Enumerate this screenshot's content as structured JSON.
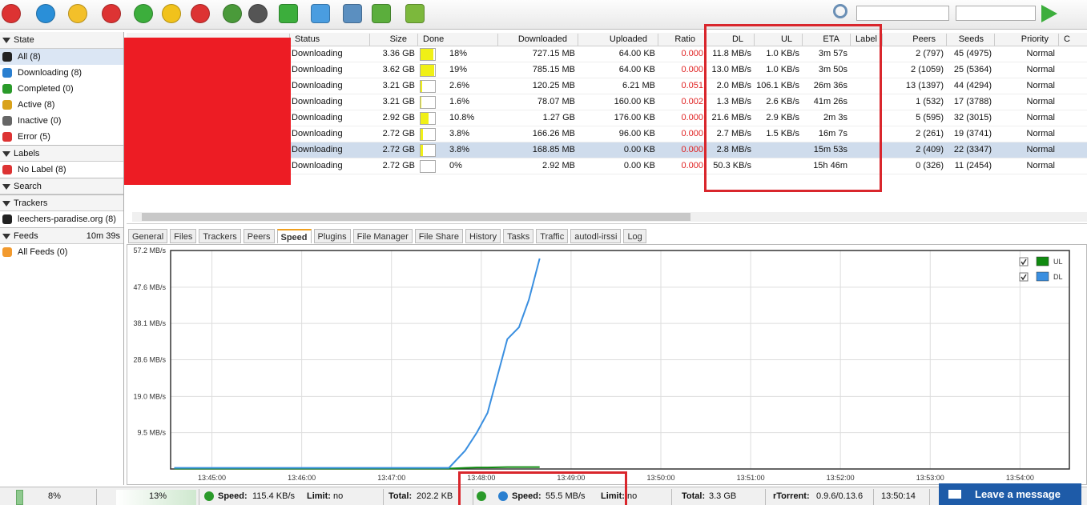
{
  "sidebar": [
    {
      "title": "State",
      "items": [
        "All (8)",
        "Downloading (8)",
        "Completed (0)",
        "Active (8)",
        "Inactive (0)",
        "Error (5)"
      ]
    },
    {
      "title": "Labels",
      "items": [
        "No Label (8)"
      ]
    },
    {
      "title": "Search",
      "items": []
    },
    {
      "title": "Trackers",
      "items": [
        "leechers-paradise.org (8)"
      ]
    },
    {
      "title": "Feeds",
      "note": "10m 39s",
      "items": [
        "All Feeds (0)"
      ]
    }
  ],
  "table": {
    "headers": [
      "Status",
      "Size",
      "Done",
      "Downloaded",
      "Uploaded",
      "Ratio",
      "DL",
      "UL",
      "ETA",
      "Label",
      "Peers",
      "Seeds",
      "Priority",
      "C"
    ],
    "selected_row": 6,
    "rows": [
      [
        "Downloading",
        "3.36 GB",
        "18%",
        "727.15 MB",
        "64.00 KB",
        "0.000",
        "11.8 MB/s",
        "1.0 KB/s",
        "3m 57s",
        null,
        "2 (797)",
        "45 (4975)",
        "Normal"
      ],
      [
        "Downloading",
        "3.62 GB",
        "19%",
        "785.15 MB",
        "64.00 KB",
        "0.000",
        "13.0 MB/s",
        "1.0 KB/s",
        "3m 50s",
        null,
        "2 (1059)",
        "25 (5364)",
        "Normal"
      ],
      [
        "Downloading",
        "3.21 GB",
        "2.6%",
        "120.25 MB",
        "6.21 MB",
        "0.051",
        "2.0 MB/s",
        "106.1 KB/s",
        "26m 36s",
        null,
        "13 (1397)",
        "44 (4294)",
        "Normal"
      ],
      [
        "Downloading",
        "3.21 GB",
        "1.6%",
        "78.07 MB",
        "160.00 KB",
        "0.002",
        "1.3 MB/s",
        "2.6 KB/s",
        "41m 26s",
        null,
        "1 (532)",
        "17 (3788)",
        "Normal"
      ],
      [
        "Downloading",
        "2.92 GB",
        "10.8%",
        "1.27 GB",
        "176.00 KB",
        "0.000",
        "21.6 MB/s",
        "2.9 KB/s",
        "2m 3s",
        null,
        "5 (595)",
        "32 (3015)",
        "Normal"
      ],
      [
        "Downloading",
        "2.72 GB",
        "3.8%",
        "166.26 MB",
        "96.00 KB",
        "0.000",
        "2.7 MB/s",
        "1.5 KB/s",
        "16m 7s",
        null,
        "2 (261)",
        "19 (3741)",
        "Normal"
      ],
      [
        "Downloading",
        "2.72 GB",
        "3.8%",
        "168.85 MB",
        "0.00 KB",
        "0.000",
        "2.8 MB/s",
        null,
        "15m 53s",
        null,
        "2 (409)",
        "22 (3347)",
        "Normal"
      ],
      [
        "Downloading",
        "2.72 GB",
        "0%",
        "2.92 MB",
        "0.00 KB",
        "0.000",
        "50.3 KB/s",
        null,
        "15h 46m",
        null,
        "0 (326)",
        "11 (2454)",
        "Normal"
      ]
    ]
  },
  "tabs": {
    "items": [
      "General",
      "Files",
      "Trackers",
      "Peers",
      "Speed",
      "Plugins",
      "File Manager",
      "File Share",
      "History",
      "Tasks",
      "Traffic",
      "autodl-irssi",
      "Log"
    ],
    "active": 4
  },
  "speed_graph": {
    "type": "line",
    "xlim": [
      44.54,
      54.55
    ],
    "ylim": [
      0,
      57.2
    ],
    "xticks": [
      {
        "value": 45,
        "label": "13:45:00"
      },
      {
        "value": 46,
        "label": "13:46:00"
      },
      {
        "value": 47,
        "label": "13:47:00"
      },
      {
        "value": 48,
        "label": "13:48:00"
      },
      {
        "value": 49,
        "label": "13:49:00"
      },
      {
        "value": 50,
        "label": "13:50:00"
      },
      {
        "value": 51,
        "label": "13:51:00"
      },
      {
        "value": 52,
        "label": "13:52:00"
      },
      {
        "value": 53,
        "label": "13:53:00"
      },
      {
        "value": 54,
        "label": "13:54:00"
      }
    ],
    "yticks": [
      {
        "value": 9.5,
        "label": "9.5 MB/s"
      },
      {
        "value": 19.0,
        "label": "19.0 MB/s"
      },
      {
        "value": 28.6,
        "label": "28.6 MB/s"
      },
      {
        "value": 38.1,
        "label": "38.1 MB/s"
      },
      {
        "value": 47.6,
        "label": "47.6 MB/s"
      },
      {
        "value": 57.2,
        "label": "57.2 MB/s"
      }
    ],
    "grid": true,
    "x": [
      44.58,
      47.64,
      47.82,
      47.95,
      48.07,
      48.29,
      48.42,
      48.53,
      48.65
    ],
    "series": [
      {
        "name": "UL",
        "color": "#108a10",
        "values": [
          0.1,
          0.1,
          0.3,
          0.4,
          0.4,
          0.5,
          0.5,
          0.5,
          0.5
        ]
      },
      {
        "name": "DL",
        "color": "#3a8fe0",
        "values": [
          0.3,
          0.3,
          4.8,
          9.5,
          14.7,
          34.0,
          37.1,
          44.3,
          55.1
        ]
      }
    ]
  },
  "status_bar": {
    "cpu": "8%",
    "disk": "13%",
    "up": {
      "speed_label": "Speed:",
      "speed": "115.4 KB/s",
      "limit_label": "Limit:",
      "limit": "no",
      "total_label": "Total:",
      "total": "202.2 KB"
    },
    "down": {
      "speed_label": "Speed:",
      "speed": "55.5 MB/s",
      "limit_label": "Limit:",
      "limit": "no",
      "total_label": "Total:",
      "total": "3.3 GB"
    },
    "version_label": "rTorrent:",
    "version": "0.9.6/0.13.6",
    "time": "13:50:14",
    "chat": "Leave a message"
  }
}
